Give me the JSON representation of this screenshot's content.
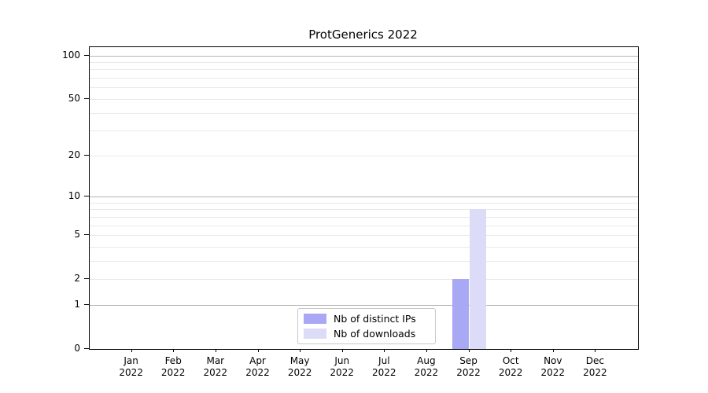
{
  "title": "ProtGenerics 2022",
  "chart_data": {
    "type": "bar",
    "title": "ProtGenerics 2022",
    "xlabel": "",
    "ylabel": "",
    "y_scale": "log1p",
    "ylim": [
      0,
      114
    ],
    "yticks": [
      0,
      1,
      2,
      5,
      10,
      20,
      50,
      100
    ],
    "major_gridlines": [
      1,
      10,
      100
    ],
    "minor_gridlines": [
      2,
      3,
      4,
      5,
      6,
      7,
      8,
      9,
      20,
      30,
      40,
      50,
      60,
      70,
      80,
      90
    ],
    "categories": [
      "Jan",
      "Feb",
      "Mar",
      "Apr",
      "May",
      "Jun",
      "Jul",
      "Aug",
      "Sep",
      "Oct",
      "Nov",
      "Dec"
    ],
    "category_year": "2022",
    "series": [
      {
        "name": "Nb of distinct IPs",
        "color": "#a8a8f4",
        "values": [
          0,
          0,
          0,
          0,
          0,
          0,
          0,
          0,
          2,
          0,
          0,
          0
        ]
      },
      {
        "name": "Nb of downloads",
        "color": "#dcdcf8",
        "values": [
          0,
          0,
          0,
          0,
          0,
          0,
          0,
          0,
          8,
          0,
          0,
          0
        ]
      }
    ],
    "legend": {
      "position": "lower-center",
      "border_color": "#c9c9c9"
    },
    "grid": "on",
    "colors": {
      "major_grid": "#b4b4b4",
      "minor_grid": "#e9e9e9",
      "spine": "#000000",
      "background": "#ffffff"
    }
  }
}
